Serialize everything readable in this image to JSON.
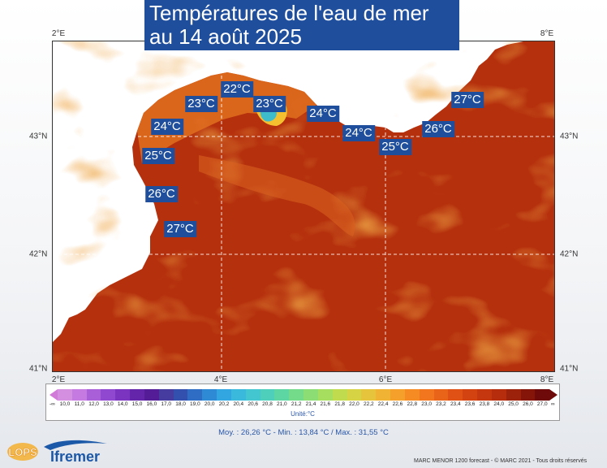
{
  "title": {
    "line1": "Températures de l'eau de mer",
    "line2": "au 14 août 2025"
  },
  "axes": {
    "lon_labels": [
      "2°E",
      "4°E",
      "6°E",
      "8°E"
    ],
    "lat_labels": [
      "43°N",
      "42°N",
      "41°N"
    ]
  },
  "temperature_labels": [
    {
      "text": "22°C"
    },
    {
      "text": "23°C"
    },
    {
      "text": "23°C"
    },
    {
      "text": "24°C"
    },
    {
      "text": "24°C"
    },
    {
      "text": "24°C"
    },
    {
      "text": "25°C"
    },
    {
      "text": "25°C"
    },
    {
      "text": "26°C"
    },
    {
      "text": "26°C"
    },
    {
      "text": "27°C"
    },
    {
      "text": "27°C"
    }
  ],
  "legend": {
    "left_end": "-∞",
    "right_end": "∞",
    "ticks": [
      "10,0",
      "11,0",
      "12,0",
      "13,0",
      "14,0",
      "15,0",
      "16,0",
      "17,0",
      "18,0",
      "19,0",
      "20,0",
      "20,2",
      "20,4",
      "20,6",
      "20,8",
      "21,0",
      "21,2",
      "21,4",
      "21,6",
      "21,8",
      "22,0",
      "22,2",
      "22,4",
      "22,6",
      "22,8",
      "23,0",
      "23,2",
      "23,4",
      "23,6",
      "23,8",
      "24,0",
      "25,0",
      "26,0",
      "27,0"
    ],
    "colors": [
      "#d58fe0",
      "#c47ae0",
      "#a95fd8",
      "#9048d0",
      "#7a34c0",
      "#6525ab",
      "#551c98",
      "#463b9e",
      "#3450ae",
      "#2f6cc4",
      "#2f8ad6",
      "#31a6e0",
      "#3ab9dc",
      "#43c6cf",
      "#4dcfbb",
      "#5ed6a3",
      "#74db8a",
      "#8cde74",
      "#a6df5f",
      "#c0dc4e",
      "#d6d344",
      "#e6c53c",
      "#f0b334",
      "#f6a02c",
      "#f68b24",
      "#f2761d",
      "#e96318",
      "#df5115",
      "#d34312",
      "#c5380f",
      "#b52d0d",
      "#9c220b",
      "#861509",
      "#6e0a0a"
    ],
    "unit": "Unité:°C"
  },
  "stats": "Moy. : 26,26 °C   -   Min. : 13,84 °C / Max. : 31,55 °C",
  "logos": {
    "lops": "LOPS",
    "ifremer": "Ifremer"
  },
  "credit": "MARC MENOR 1200 forecast - © MARC 2021 - Tous droits réservés"
}
